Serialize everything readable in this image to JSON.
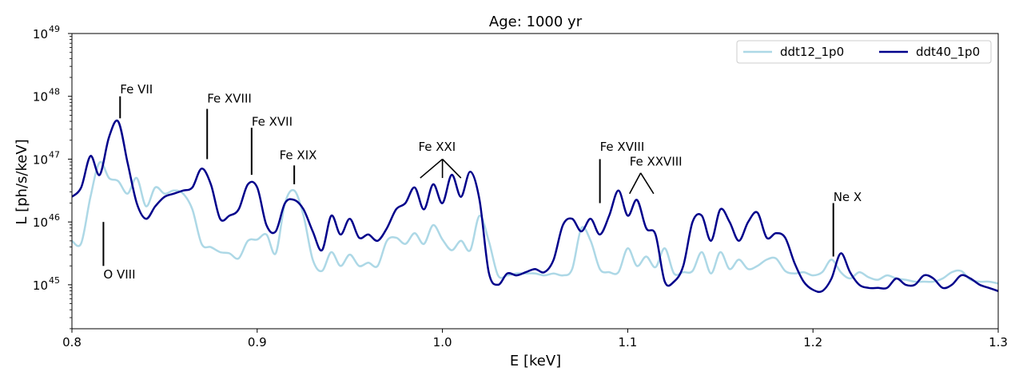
{
  "chart_data": {
    "type": "line",
    "title": "Age: 1000 yr",
    "xlabel": "E [keV]",
    "ylabel": "L [ph/s/keV]",
    "xlim": [
      0.8,
      1.3
    ],
    "ylim_log10": [
      44.3,
      49
    ],
    "yscale": "log",
    "xticks": [
      "0.8",
      "0.9",
      "1.0",
      "1.1",
      "1.2",
      "1.3"
    ],
    "xtick_values": [
      0.8,
      0.9,
      1.0,
      1.1,
      1.2,
      1.3
    ],
    "yticks": [
      {
        "base": "10",
        "exp": "45",
        "log": 45
      },
      {
        "base": "10",
        "exp": "46",
        "log": 46
      },
      {
        "base": "10",
        "exp": "47",
        "log": 47
      },
      {
        "base": "10",
        "exp": "48",
        "log": 48
      },
      {
        "base": "10",
        "exp": "49",
        "log": 49
      }
    ],
    "legend_position": "top-right",
    "series": [
      {
        "name": "ddt12_1p0",
        "color": "#add8e6",
        "x": [
          0.8,
          0.805,
          0.81,
          0.815,
          0.82,
          0.825,
          0.83,
          0.835,
          0.84,
          0.845,
          0.85,
          0.855,
          0.86,
          0.865,
          0.87,
          0.875,
          0.88,
          0.885,
          0.89,
          0.895,
          0.9,
          0.905,
          0.91,
          0.915,
          0.92,
          0.925,
          0.93,
          0.935,
          0.94,
          0.945,
          0.95,
          0.955,
          0.96,
          0.965,
          0.97,
          0.975,
          0.98,
          0.985,
          0.99,
          0.995,
          1.0,
          1.005,
          1.01,
          1.015,
          1.02,
          1.025,
          1.03,
          1.035,
          1.04,
          1.045,
          1.05,
          1.055,
          1.06,
          1.065,
          1.07,
          1.075,
          1.08,
          1.085,
          1.09,
          1.095,
          1.1,
          1.105,
          1.11,
          1.115,
          1.12,
          1.125,
          1.13,
          1.135,
          1.14,
          1.145,
          1.15,
          1.155,
          1.16,
          1.165,
          1.17,
          1.175,
          1.18,
          1.185,
          1.19,
          1.195,
          1.2,
          1.205,
          1.21,
          1.215,
          1.22,
          1.225,
          1.23,
          1.235,
          1.24,
          1.245,
          1.25,
          1.255,
          1.26,
          1.265,
          1.27,
          1.275,
          1.28,
          1.285,
          1.29,
          1.295,
          1.3
        ],
        "y_log10": [
          45.7,
          45.66,
          46.4,
          46.95,
          46.7,
          46.65,
          46.45,
          46.7,
          46.25,
          46.55,
          46.45,
          46.5,
          46.45,
          46.2,
          45.65,
          45.6,
          45.52,
          45.5,
          45.42,
          45.7,
          45.72,
          45.8,
          45.5,
          46.3,
          46.5,
          46.1,
          45.4,
          45.22,
          45.52,
          45.3,
          45.48,
          45.3,
          45.35,
          45.3,
          45.7,
          45.75,
          45.65,
          45.82,
          45.65,
          45.95,
          45.72,
          45.55,
          45.7,
          45.55,
          46.1,
          45.7,
          45.15,
          45.15,
          45.18,
          45.18,
          45.18,
          45.15,
          45.18,
          45.15,
          45.25,
          45.9,
          45.7,
          45.25,
          45.2,
          45.2,
          45.58,
          45.3,
          45.45,
          45.28,
          45.58,
          45.18,
          45.2,
          45.22,
          45.52,
          45.18,
          45.52,
          45.25,
          45.4,
          45.25,
          45.3,
          45.4,
          45.42,
          45.22,
          45.18,
          45.2,
          45.15,
          45.2,
          45.4,
          45.2,
          45.1,
          45.2,
          45.12,
          45.08,
          45.15,
          45.1,
          45.08,
          45.05,
          45.05,
          45.05,
          45.1,
          45.2,
          45.22,
          45.08,
          45.05,
          45.05,
          45.02
        ]
      },
      {
        "name": "ddt40_1p0",
        "color": "#00008b",
        "x": [
          0.8,
          0.805,
          0.81,
          0.815,
          0.82,
          0.825,
          0.83,
          0.835,
          0.84,
          0.845,
          0.85,
          0.855,
          0.86,
          0.865,
          0.87,
          0.875,
          0.88,
          0.885,
          0.89,
          0.895,
          0.9,
          0.905,
          0.91,
          0.915,
          0.92,
          0.925,
          0.93,
          0.935,
          0.94,
          0.945,
          0.95,
          0.955,
          0.96,
          0.965,
          0.97,
          0.975,
          0.98,
          0.985,
          0.99,
          0.995,
          1.0,
          1.005,
          1.01,
          1.015,
          1.02,
          1.025,
          1.03,
          1.035,
          1.04,
          1.045,
          1.05,
          1.055,
          1.06,
          1.065,
          1.07,
          1.075,
          1.08,
          1.085,
          1.09,
          1.095,
          1.1,
          1.105,
          1.11,
          1.115,
          1.12,
          1.125,
          1.13,
          1.135,
          1.14,
          1.145,
          1.15,
          1.155,
          1.16,
          1.165,
          1.17,
          1.175,
          1.18,
          1.185,
          1.19,
          1.195,
          1.2,
          1.205,
          1.21,
          1.215,
          1.22,
          1.225,
          1.23,
          1.235,
          1.24,
          1.245,
          1.25,
          1.255,
          1.26,
          1.265,
          1.27,
          1.275,
          1.28,
          1.285,
          1.29,
          1.295,
          1.3
        ],
        "y_log10": [
          46.4,
          46.55,
          47.05,
          46.75,
          47.35,
          47.6,
          46.95,
          46.3,
          46.05,
          46.25,
          46.4,
          46.45,
          46.5,
          46.55,
          46.85,
          46.6,
          46.05,
          46.1,
          46.2,
          46.6,
          46.55,
          45.95,
          45.85,
          46.3,
          46.35,
          46.2,
          45.85,
          45.55,
          46.1,
          45.8,
          46.05,
          45.75,
          45.8,
          45.7,
          45.9,
          46.2,
          46.3,
          46.55,
          46.2,
          46.6,
          46.3,
          46.75,
          46.4,
          46.8,
          46.35,
          45.2,
          45.0,
          45.18,
          45.15,
          45.2,
          45.25,
          45.2,
          45.4,
          45.95,
          46.05,
          45.85,
          46.05,
          45.8,
          46.1,
          46.5,
          46.1,
          46.35,
          45.9,
          45.8,
          45.05,
          45.05,
          45.3,
          46.0,
          46.1,
          45.7,
          46.2,
          46.0,
          45.7,
          46.0,
          46.15,
          45.75,
          45.82,
          45.75,
          45.35,
          45.05,
          44.92,
          44.9,
          45.1,
          45.5,
          45.2,
          45.0,
          44.95,
          44.95,
          44.95,
          45.1,
          45.0,
          45.0,
          45.15,
          45.1,
          44.95,
          45.0,
          45.15,
          45.1,
          45.0,
          44.95,
          44.9
        ]
      }
    ],
    "annotations": [
      {
        "label": "Fe VII",
        "x": 0.826,
        "y_top_log10": 48.0,
        "y_bottom_log10": 47.65,
        "text_x": 0.826,
        "text_y_log10": 48.05
      },
      {
        "label": "Fe XVIII",
        "x": 0.873,
        "y_top_log10": 47.8,
        "y_bottom_log10": 47.0,
        "text_x": 0.873,
        "text_y_log10": 47.9
      },
      {
        "label": "Fe XVII",
        "x": 0.897,
        "y_top_log10": 47.5,
        "y_bottom_log10": 46.75,
        "text_x": 0.897,
        "text_y_log10": 47.53
      },
      {
        "label": "Fe XIX",
        "x": 0.92,
        "y_top_log10": 46.9,
        "y_bottom_log10": 46.6,
        "text_x": 0.912,
        "text_y_log10": 47.0
      },
      {
        "label": "O VIII",
        "x": 0.817,
        "y_top_log10": 46.0,
        "y_bottom_log10": 45.3,
        "text_x": 0.817,
        "text_y_log10": 45.1
      },
      {
        "label": "Fe XVIII",
        "x": 1.085,
        "y_top_log10": 47.0,
        "y_bottom_log10": 46.3,
        "text_x": 1.085,
        "text_y_log10": 47.13
      },
      {
        "label": "Ne X",
        "x": 1.211,
        "y_top_log10": 46.3,
        "y_bottom_log10": 45.45,
        "text_x": 1.211,
        "text_y_log10": 46.33
      }
    ],
    "bracket_annotations": [
      {
        "label": "Fe XXI",
        "apex_x": 1.0,
        "apex_y_log10": 47.0,
        "targets_x": [
          0.988,
          1.0,
          1.01
        ],
        "target_y_log10": 46.7,
        "text_x": 0.987,
        "text_y_log10": 47.13
      },
      {
        "label": "Fe XXVIII",
        "apex_x": 1.107,
        "apex_y_log10": 46.78,
        "targets_x": [
          1.101,
          1.114
        ],
        "target_y_log10": 46.45,
        "text_x": 1.101,
        "text_y_log10": 46.9
      }
    ]
  }
}
